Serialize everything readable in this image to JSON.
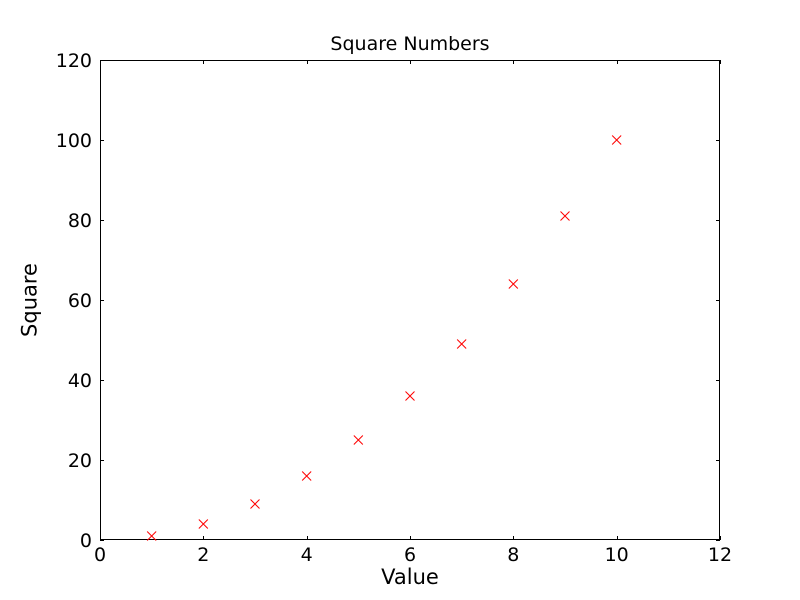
{
  "chart_data": {
    "type": "scatter",
    "title": "Square Numbers",
    "xlabel": "Value",
    "ylabel": "Square",
    "x": [
      1,
      2,
      3,
      4,
      5,
      6,
      7,
      8,
      9,
      10
    ],
    "y": [
      1,
      4,
      9,
      16,
      25,
      36,
      49,
      64,
      81,
      100
    ],
    "xlim": [
      0,
      12
    ],
    "ylim": [
      0,
      120
    ],
    "xticks": [
      0,
      2,
      4,
      6,
      8,
      10,
      12
    ],
    "yticks": [
      0,
      20,
      40,
      60,
      80,
      100,
      120
    ],
    "marker": "x",
    "marker_color": "#ff0000",
    "marker_size": 9,
    "axis_color": "#000000",
    "background_color": "#ffffff",
    "grid": false,
    "legend": null,
    "tick_direction": "in"
  }
}
